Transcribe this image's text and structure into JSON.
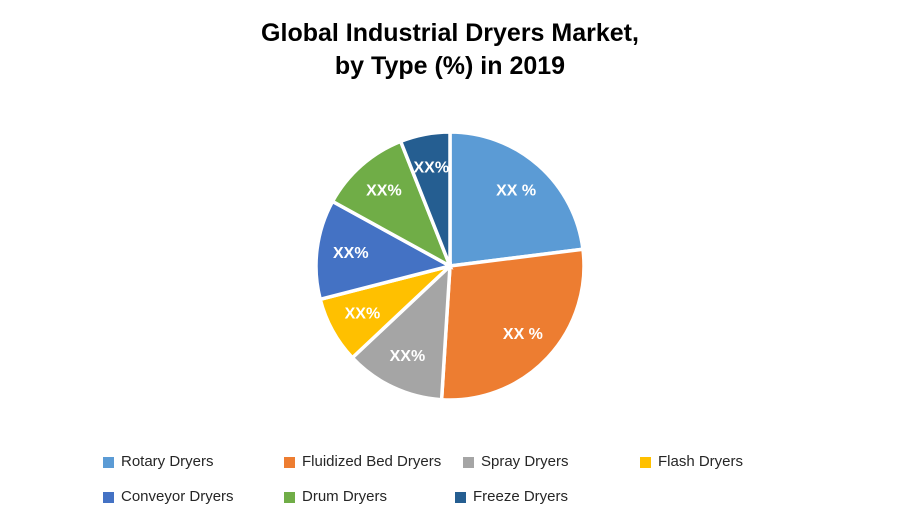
{
  "title": {
    "line1": "Global Industrial Dryers Market,",
    "line2": "by Type (%) in 2019"
  },
  "chart_data": {
    "type": "pie",
    "title": "Global Industrial Dryers Market, by Type (%) in 2019",
    "start_angle_deg": 0,
    "direction": "clockwise",
    "legend_position": "bottom",
    "series": [
      {
        "name": "Rotary Dryers",
        "slice_label": "XX %",
        "value_pct_est": 23,
        "color": "#5B9BD5"
      },
      {
        "name": "Fluidized Bed Dryers",
        "slice_label": "XX %",
        "value_pct_est": 28,
        "color": "#ED7D31"
      },
      {
        "name": "Spray Dryers",
        "slice_label": "XX%",
        "value_pct_est": 12,
        "color": "#A5A5A5"
      },
      {
        "name": "Flash Dryers",
        "slice_label": "XX%",
        "value_pct_est": 8,
        "color": "#FFC000"
      },
      {
        "name": "Conveyor Dryers",
        "slice_label": "XX%",
        "value_pct_est": 12,
        "color": "#4472C4"
      },
      {
        "name": "Drum Dryers",
        "slice_label": "XX%",
        "value_pct_est": 11,
        "color": "#70AD47"
      },
      {
        "name": "Freeze Dryers",
        "slice_label": "XX%",
        "value_pct_est": 6,
        "color": "#255E91"
      }
    ]
  }
}
